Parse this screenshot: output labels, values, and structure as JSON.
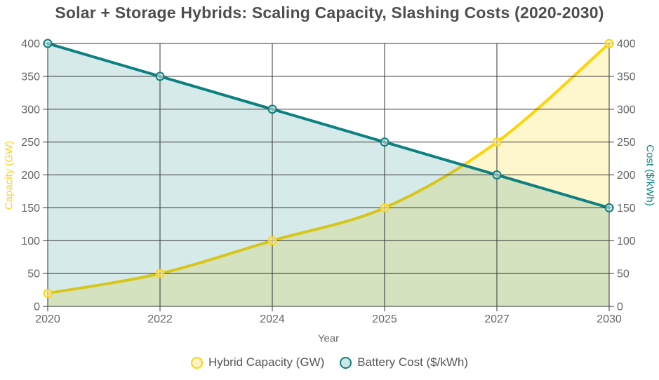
{
  "title": "Solar + Storage Hybrids: Scaling Capacity, Slashing Costs (2020-2030)",
  "chart_data": {
    "type": "line",
    "categories": [
      "2020",
      "2022",
      "2024",
      "2025",
      "2027",
      "2030"
    ],
    "series": [
      {
        "name": "Hybrid Capacity (GW)",
        "values": [
          20,
          50,
          100,
          150,
          250,
          400
        ],
        "color": "#FFD404",
        "fill": "rgba(250,210,0,0.20)",
        "marker_fill": "#FCF3C6",
        "axis": "left",
        "smooth": true
      },
      {
        "name": "Battery Cost ($/kWh)",
        "values": [
          400,
          350,
          300,
          250,
          200,
          150
        ],
        "color": "#0D8080",
        "fill": "rgba(14,128,128,0.17)",
        "marker_fill": "#CFE6E6",
        "axis": "right",
        "smooth": false
      }
    ],
    "title": "Solar + Storage Hybrids: Scaling Capacity, Slashing Costs (2020-2030)",
    "xlabel": "Year",
    "ylabel_left": "Capacity (GW)",
    "ylabel_right": "Cost ($/kWh)",
    "ylabel_left_color": "#FFCE2E",
    "ylabel_right_color": "#0F8585",
    "ylim": [
      0,
      400
    ],
    "yticks": [
      0,
      50,
      100,
      150,
      200,
      250,
      300,
      350,
      400
    ],
    "grid": true,
    "grid_color": "#333333",
    "tick_color": "#666666",
    "legend_position": "bottom"
  }
}
